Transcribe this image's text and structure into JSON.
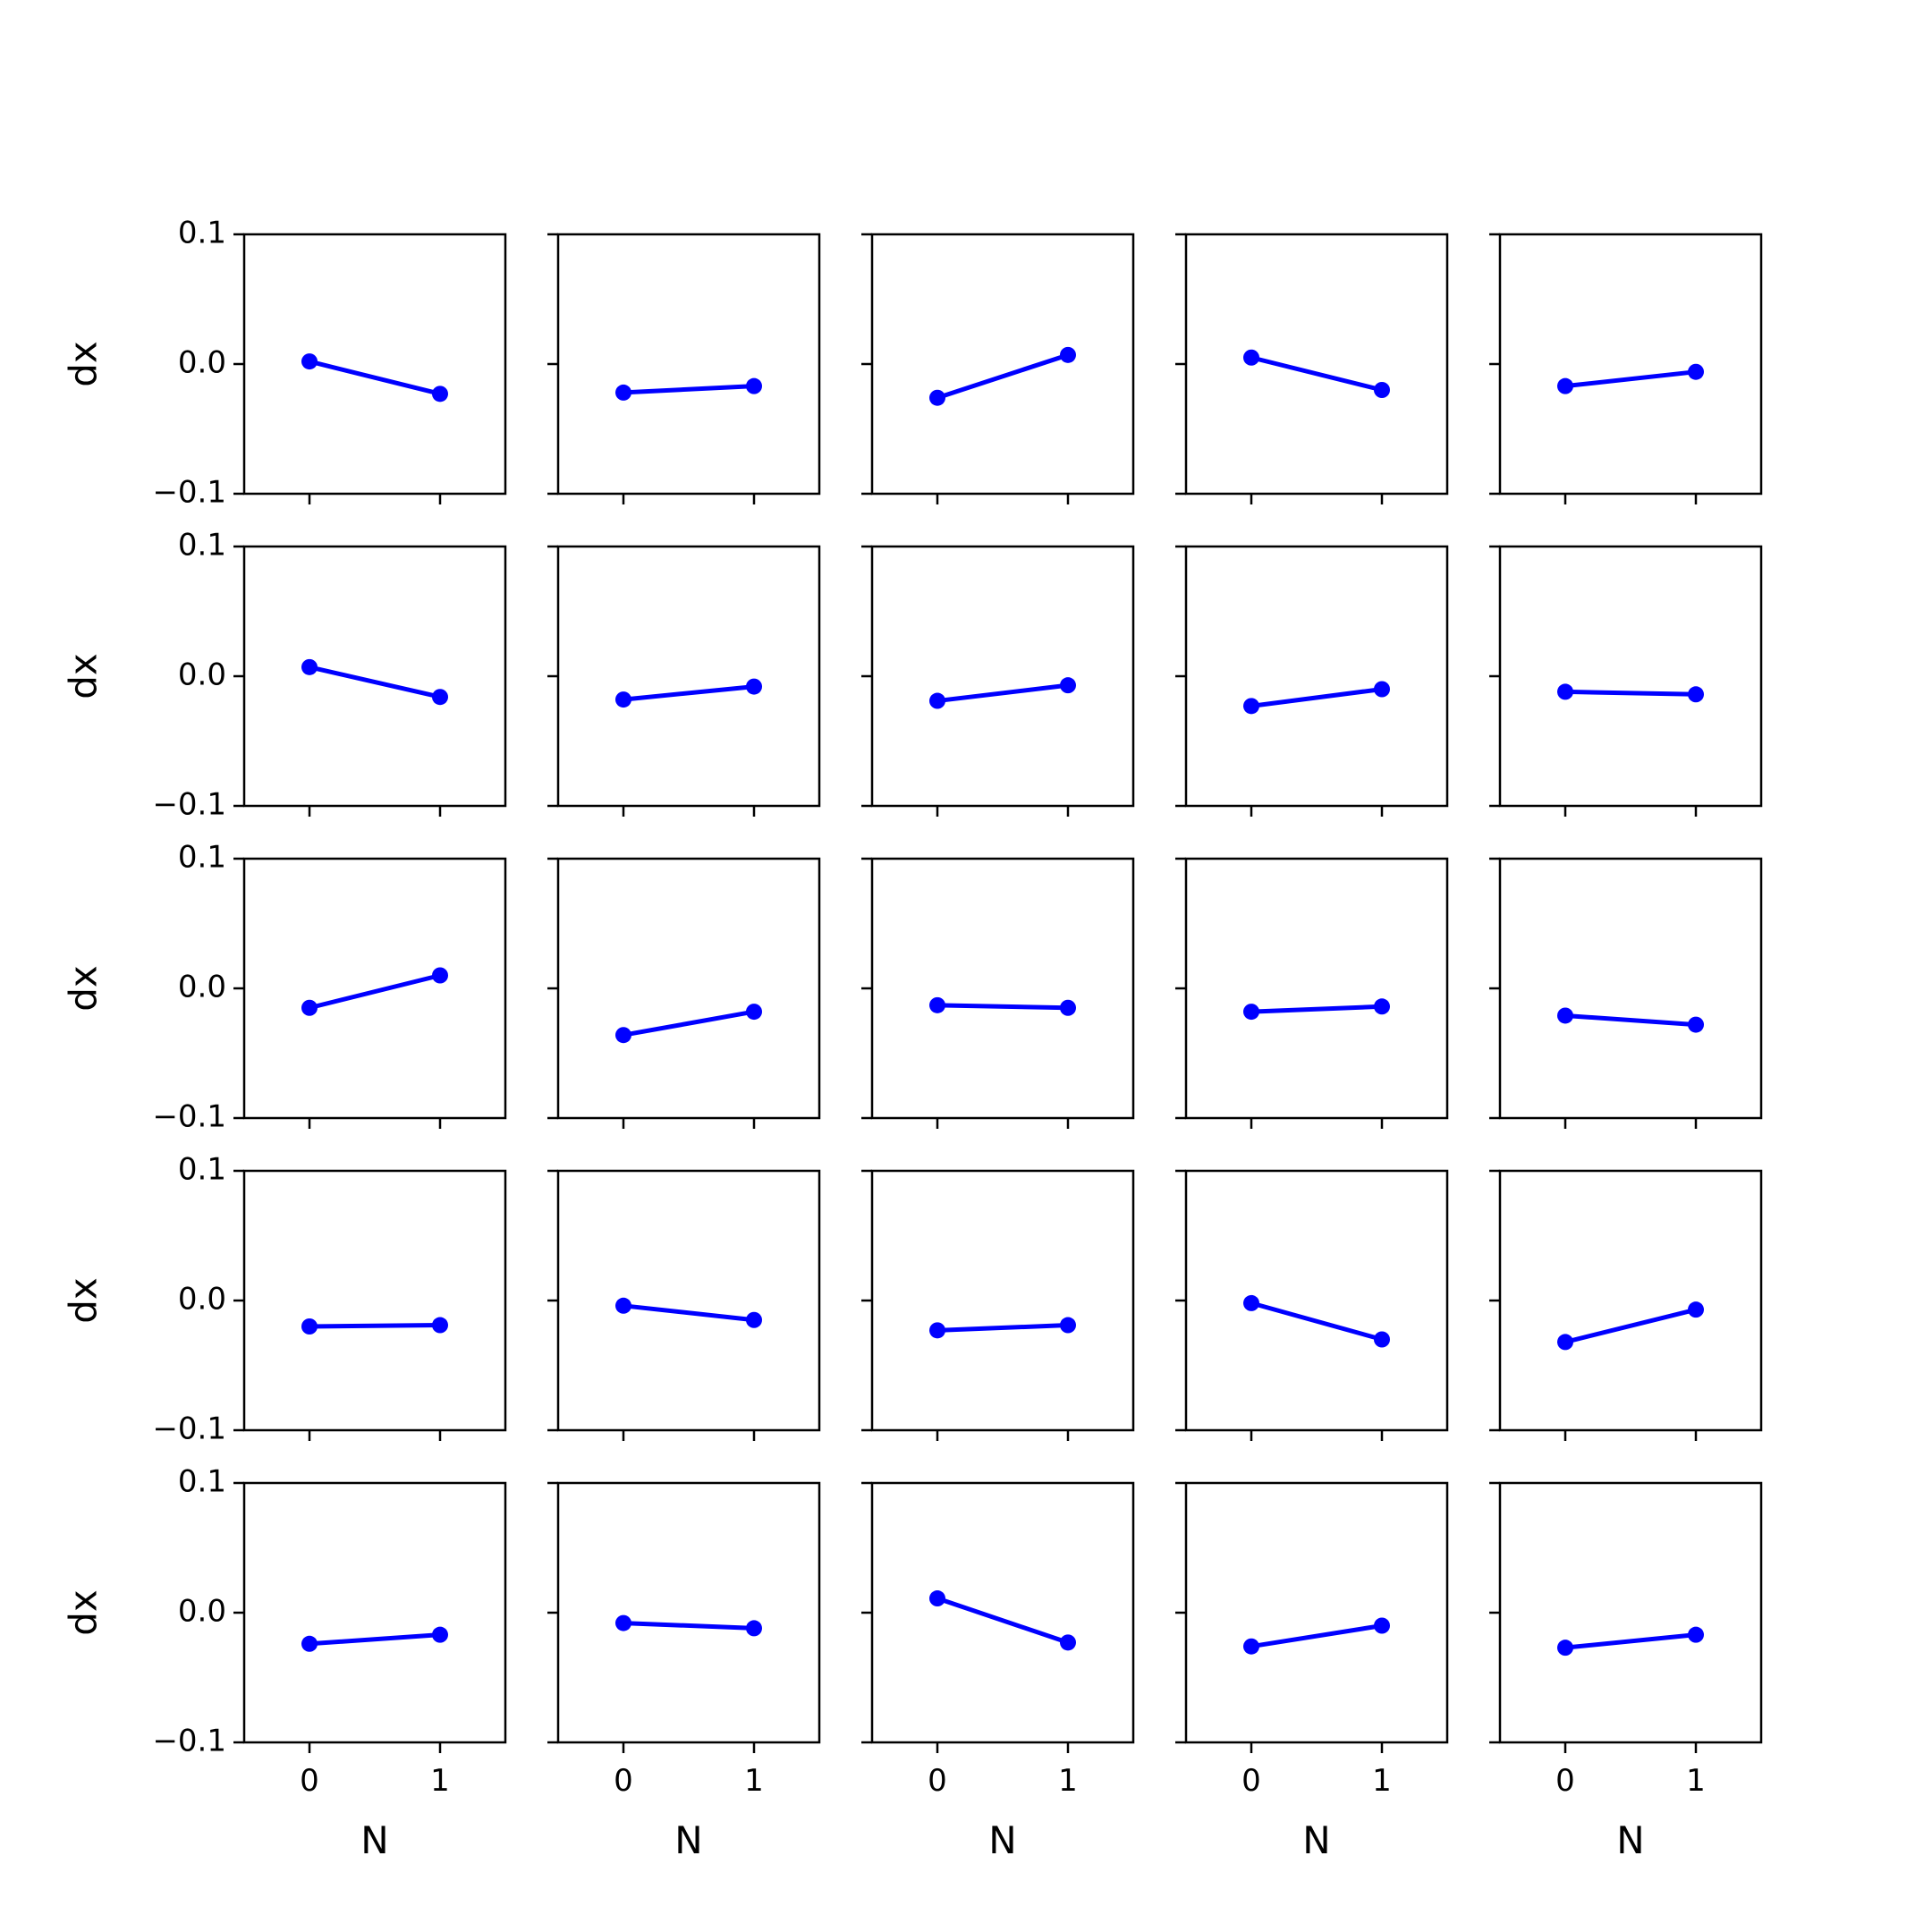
{
  "chart_data": {
    "type": "line",
    "layout": {
      "rows": 5,
      "cols": 5
    },
    "xlabel": "N",
    "ylabel": "dx",
    "xlim": [
      -0.5,
      1.5
    ],
    "ylim": [
      -0.1,
      0.1
    ],
    "xticks": [
      0,
      1
    ],
    "xtick_labels": [
      "0",
      "1"
    ],
    "yticks": [
      -0.1,
      0.0,
      0.1
    ],
    "ytick_labels": [
      "−0.1",
      "0.0",
      "0.1"
    ],
    "grid": false,
    "color": "#0000ff",
    "marker": "circle",
    "panels": [
      {
        "x": [
          0,
          1
        ],
        "y": [
          0.002,
          -0.023
        ]
      },
      {
        "x": [
          0,
          1
        ],
        "y": [
          -0.022,
          -0.017
        ]
      },
      {
        "x": [
          0,
          1
        ],
        "y": [
          -0.026,
          0.007
        ]
      },
      {
        "x": [
          0,
          1
        ],
        "y": [
          0.005,
          -0.02
        ]
      },
      {
        "x": [
          0,
          1
        ],
        "y": [
          -0.017,
          -0.006
        ]
      },
      {
        "x": [
          0,
          1
        ],
        "y": [
          0.007,
          -0.016
        ]
      },
      {
        "x": [
          0,
          1
        ],
        "y": [
          -0.018,
          -0.008
        ]
      },
      {
        "x": [
          0,
          1
        ],
        "y": [
          -0.019,
          -0.007
        ]
      },
      {
        "x": [
          0,
          1
        ],
        "y": [
          -0.023,
          -0.01
        ]
      },
      {
        "x": [
          0,
          1
        ],
        "y": [
          -0.012,
          -0.014
        ]
      },
      {
        "x": [
          0,
          1
        ],
        "y": [
          -0.015,
          0.01
        ]
      },
      {
        "x": [
          0,
          1
        ],
        "y": [
          -0.036,
          -0.018
        ]
      },
      {
        "x": [
          0,
          1
        ],
        "y": [
          -0.013,
          -0.015
        ]
      },
      {
        "x": [
          0,
          1
        ],
        "y": [
          -0.018,
          -0.014
        ]
      },
      {
        "x": [
          0,
          1
        ],
        "y": [
          -0.021,
          -0.028
        ]
      },
      {
        "x": [
          0,
          1
        ],
        "y": [
          -0.02,
          -0.019
        ]
      },
      {
        "x": [
          0,
          1
        ],
        "y": [
          -0.004,
          -0.015
        ]
      },
      {
        "x": [
          0,
          1
        ],
        "y": [
          -0.023,
          -0.019
        ]
      },
      {
        "x": [
          0,
          1
        ],
        "y": [
          -0.002,
          -0.03
        ]
      },
      {
        "x": [
          0,
          1
        ],
        "y": [
          -0.032,
          -0.007
        ]
      },
      {
        "x": [
          0,
          1
        ],
        "y": [
          -0.024,
          -0.017
        ]
      },
      {
        "x": [
          0,
          1
        ],
        "y": [
          -0.008,
          -0.012
        ]
      },
      {
        "x": [
          0,
          1
        ],
        "y": [
          0.011,
          -0.023
        ]
      },
      {
        "x": [
          0,
          1
        ],
        "y": [
          -0.026,
          -0.01
        ]
      },
      {
        "x": [
          0,
          1
        ],
        "y": [
          -0.027,
          -0.017
        ]
      }
    ]
  }
}
